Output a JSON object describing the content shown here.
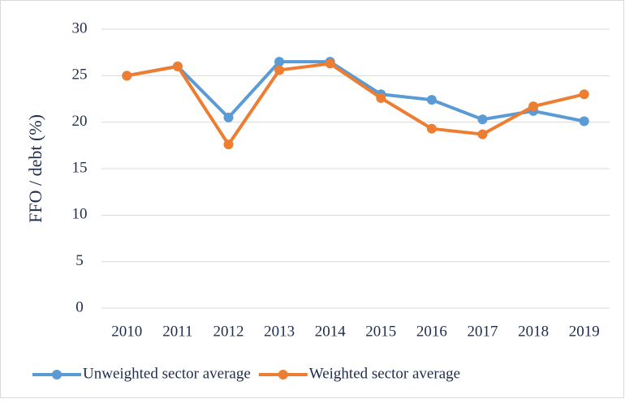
{
  "chart_data": {
    "type": "line",
    "y_label": "FFO / debt (%)",
    "categories": [
      "2010",
      "2011",
      "2012",
      "2013",
      "2014",
      "2015",
      "2016",
      "2017",
      "2018",
      "2019"
    ],
    "series": [
      {
        "name": "Unweighted sector average",
        "color": "#5b9bd5",
        "values": [
          25,
          26,
          20.5,
          26.5,
          26.5,
          23,
          22.4,
          20.3,
          21.2,
          20.1
        ]
      },
      {
        "name": "Weighted sector average",
        "color": "#ed7d31",
        "values": [
          25,
          26,
          17.6,
          25.6,
          26.3,
          22.6,
          19.3,
          18.7,
          21.7,
          23
        ]
      }
    ],
    "ylim": [
      0,
      30
    ],
    "yticks": [
      0,
      5,
      10,
      15,
      20,
      25,
      30
    ],
    "grid": true,
    "legend": "bottom"
  }
}
